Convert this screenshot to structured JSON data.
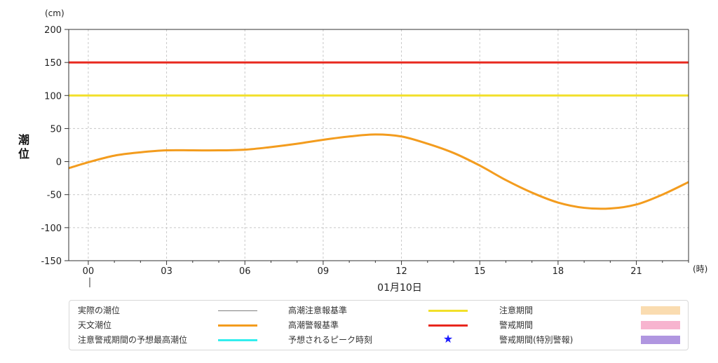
{
  "chart_data": {
    "type": "line",
    "yunit": "(cm)",
    "ylabel": "潮位",
    "xunit": "(時)",
    "date_label": "01月10日",
    "ylim": [
      -150,
      200
    ],
    "yticks": [
      "200",
      "150",
      "100",
      "50",
      "0",
      "-50",
      "-100",
      "-150"
    ],
    "xticks": [
      "00",
      "03",
      "06",
      "09",
      "12",
      "15",
      "18",
      "21"
    ],
    "grid": true,
    "legend_position": "bottom",
    "colors": {
      "observed": "#7f7f7f",
      "astronomical": "#f39c1e",
      "forecast_peak": "#33eeee",
      "caution_level": "#f2e02a",
      "warning_level": "#e8281e",
      "peak_star": "#1a1aff",
      "caution_period": "#fadcb0",
      "warning_period": "#f7b4cf",
      "special_warning_period": "#b096e0"
    },
    "series": [
      {
        "name": "天文潮位",
        "x": [
          -0.75,
          0,
          1,
          2,
          3,
          4,
          5,
          6,
          7,
          8,
          9,
          10,
          11,
          12,
          13,
          14,
          15,
          16,
          17,
          18,
          19,
          20,
          21,
          22,
          23
        ],
        "values": [
          -10,
          -1,
          9,
          14,
          17,
          17,
          17,
          18,
          22,
          27,
          33,
          38,
          41,
          38,
          27,
          13,
          -6,
          -28,
          -47,
          -62,
          -70,
          -71,
          -65,
          -50,
          -31
        ]
      },
      {
        "name": "高潮注意報基準",
        "x": [
          -0.75,
          23
        ],
        "values": [
          100,
          100
        ]
      },
      {
        "name": "高潮警報基準",
        "x": [
          -0.75,
          23
        ],
        "values": [
          150,
          150
        ]
      }
    ]
  },
  "legend": [
    {
      "label": "実際の潮位",
      "kind": "line",
      "color": "#7f7f7f",
      "thin": true
    },
    {
      "label": "高潮注意報基準",
      "kind": "line",
      "color": "#f2e02a"
    },
    {
      "label": "注意期間",
      "kind": "box",
      "color": "#fadcb0"
    },
    {
      "label": "天文潮位",
      "kind": "line",
      "color": "#f39c1e"
    },
    {
      "label": "高潮警報基準",
      "kind": "line",
      "color": "#e8281e"
    },
    {
      "label": "警戒期間",
      "kind": "box",
      "color": "#f7b4cf"
    },
    {
      "label": "注意警戒期間の予想最高潮位",
      "kind": "line",
      "color": "#33eeee"
    },
    {
      "label": "予想されるピーク時刻",
      "kind": "star",
      "glyph": "★",
      "color": "#1a1aff"
    },
    {
      "label": "警戒期間(特別警報)",
      "kind": "box",
      "color": "#b096e0"
    }
  ]
}
